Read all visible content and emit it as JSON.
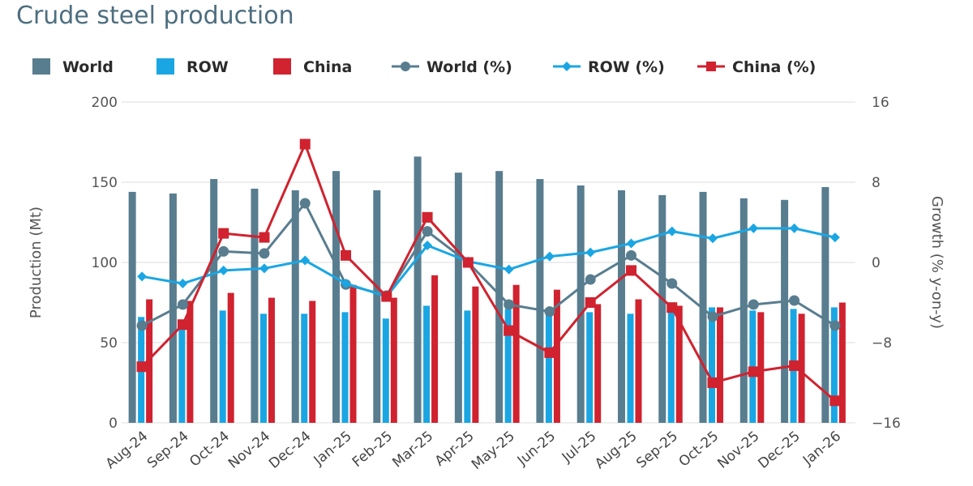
{
  "chart_data": {
    "type": "bar",
    "title": "Crude steel production",
    "categories": [
      "Aug-24",
      "Sep-24",
      "Oct-24",
      "Nov-24",
      "Dec-24",
      "Jan-25",
      "Feb-25",
      "Mar-25",
      "Apr-25",
      "May-25",
      "Jun-25",
      "Jul-25",
      "Aug-25",
      "Sep-25",
      "Oct-25",
      "Nov-25",
      "Dec-25",
      "Jan-26"
    ],
    "ylabel": "Production (Mt)",
    "y2label": "Growth (% y-on-y)",
    "ylim": [
      0,
      200
    ],
    "yticks": [
      "0",
      "50",
      "100",
      "150",
      "200"
    ],
    "y2lim": [
      -16,
      16
    ],
    "y2ticks": [
      "−16",
      "−8",
      "0",
      "8",
      "16"
    ],
    "legend_position": "top",
    "grid": true,
    "bar_series": [
      {
        "name": "World",
        "color": "#587d8f",
        "values": [
          144,
          143,
          152,
          146,
          145,
          157,
          145,
          166,
          156,
          157,
          152,
          148,
          145,
          142,
          144,
          140,
          139,
          147
        ]
      },
      {
        "name": "ROW",
        "color": "#1aa6e3",
        "values": [
          66,
          62,
          70,
          68,
          68,
          69,
          65,
          73,
          70,
          71,
          69,
          69,
          68,
          70,
          72,
          70,
          71,
          72
        ]
      },
      {
        "name": "China",
        "color": "#d0222f",
        "values": [
          77,
          76,
          81,
          78,
          76,
          86,
          78,
          92,
          85,
          86,
          83,
          74,
          77,
          73,
          72,
          69,
          68,
          75
        ]
      }
    ],
    "line_series": [
      {
        "name": "World (%)",
        "color": "#587d8f",
        "marker": "circle",
        "values": [
          -6.3,
          -4.2,
          1.1,
          0.9,
          5.9,
          -2.2,
          -3.3,
          3.1,
          0,
          -4.2,
          -4.9,
          -1.7,
          0.7,
          -2.1,
          -5.4,
          -4.2,
          -3.8,
          -6.3
        ]
      },
      {
        "name": "ROW (%)",
        "color": "#1aa6e3",
        "marker": "diamond",
        "values": [
          -1.4,
          -2.1,
          -0.8,
          -0.6,
          0.2,
          -2.1,
          -3.4,
          1.7,
          0.1,
          -0.7,
          0.6,
          1.0,
          1.9,
          3.1,
          2.4,
          3.4,
          3.4,
          2.5
        ]
      },
      {
        "name": "China (%)",
        "color": "#d0222f",
        "marker": "square",
        "values": [
          -10.4,
          -6.2,
          2.9,
          2.5,
          11.8,
          0.7,
          -3.4,
          4.5,
          0,
          -6.8,
          -9.0,
          -4.0,
          -0.8,
          -4.5,
          -12.0,
          -10.9,
          -10.3,
          -13.8
        ]
      }
    ]
  }
}
